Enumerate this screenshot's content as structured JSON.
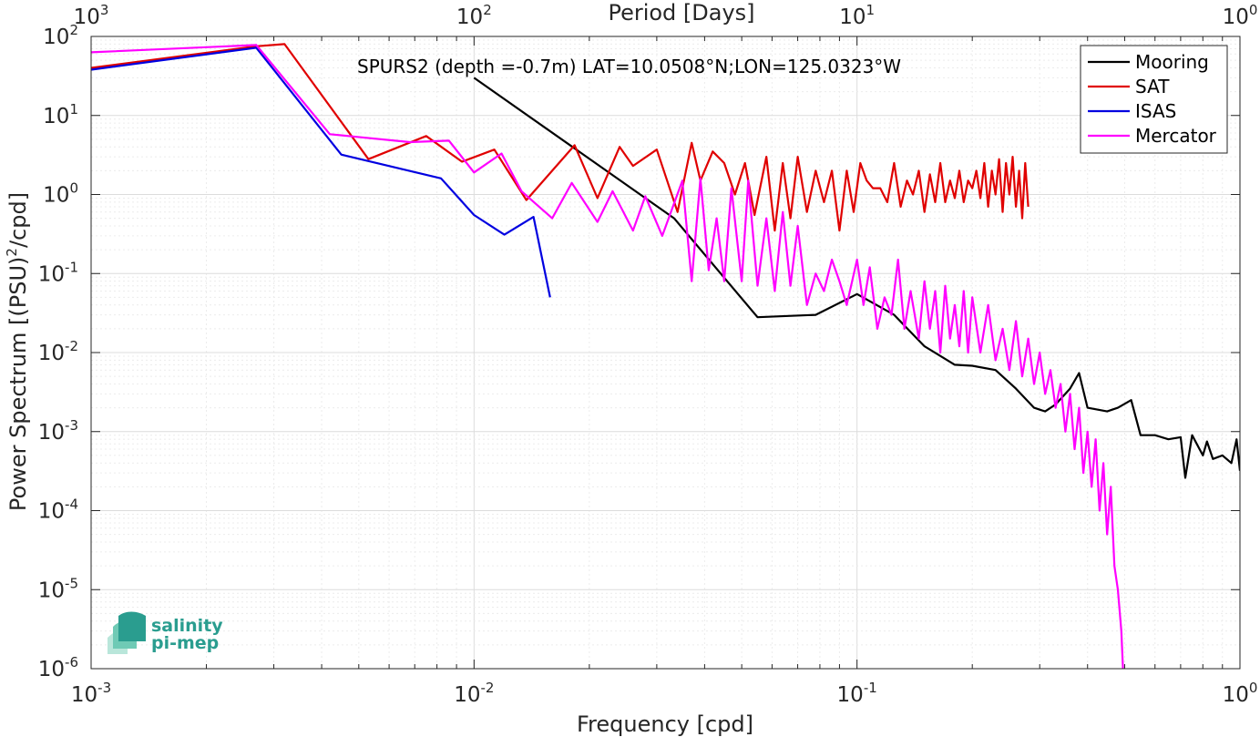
{
  "chart_data": {
    "type": "line",
    "title": "SPURS2 (depth =-0.7m) LAT=10.0508°N;LON=125.0323°W",
    "xlabel": "Frequency [cpd]",
    "ylabel": "Power Spectrum [(PSU)^2/cpd]",
    "x2label": "Period [Days]",
    "xscale": "log",
    "yscale": "log",
    "xlim": [
      0.001,
      1
    ],
    "ylim": [
      1e-06,
      100
    ],
    "grid": true,
    "legend_position": "top-right",
    "x_tick_labels": [
      {
        "base": "10",
        "exp": "-3"
      },
      {
        "base": "10",
        "exp": "-2"
      },
      {
        "base": "10",
        "exp": "-1"
      },
      {
        "base": "10",
        "exp": "0"
      }
    ],
    "x2_tick_labels": [
      {
        "base": "10",
        "exp": "3"
      },
      {
        "base": "10",
        "exp": "2"
      },
      {
        "base": "10",
        "exp": "1"
      },
      {
        "base": "10",
        "exp": "0"
      }
    ],
    "y_tick_labels": [
      {
        "base": "10",
        "exp": "-6"
      },
      {
        "base": "10",
        "exp": "-5"
      },
      {
        "base": "10",
        "exp": "-4"
      },
      {
        "base": "10",
        "exp": "-3"
      },
      {
        "base": "10",
        "exp": "-2"
      },
      {
        "base": "10",
        "exp": "-1"
      },
      {
        "base": "10",
        "exp": "0"
      },
      {
        "base": "10",
        "exp": "1"
      },
      {
        "base": "10",
        "exp": "2"
      }
    ],
    "series": [
      {
        "name": "Mooring",
        "color": "#000000",
        "x": [
          0.01,
          0.0333,
          0.055,
          0.078,
          0.1,
          0.125,
          0.15,
          0.18,
          0.2,
          0.23,
          0.26,
          0.29,
          0.31,
          0.33,
          0.36,
          0.38,
          0.4,
          0.45,
          0.48,
          0.52,
          0.55,
          0.6,
          0.65,
          0.7,
          0.72,
          0.75,
          0.8,
          0.82,
          0.85,
          0.9,
          0.95,
          0.98,
          1.0
        ],
        "y": [
          30,
          0.5,
          0.028,
          0.03,
          0.055,
          0.03,
          0.012,
          0.007,
          0.0068,
          0.006,
          0.0035,
          0.002,
          0.0018,
          0.0022,
          0.0035,
          0.0055,
          0.002,
          0.0018,
          0.002,
          0.0025,
          0.0009,
          0.0009,
          0.0008,
          0.00085,
          0.00026,
          0.0009,
          0.0005,
          0.00075,
          0.00045,
          0.0005,
          0.0004,
          0.0008,
          0.00032
        ]
      },
      {
        "name": "SAT",
        "color": "#e00000",
        "x": [
          0.001,
          0.0027,
          0.0032,
          0.0053,
          0.0075,
          0.0093,
          0.0113,
          0.0137,
          0.0183,
          0.021,
          0.024,
          0.026,
          0.03,
          0.034,
          0.037,
          0.039,
          0.042,
          0.045,
          0.048,
          0.051,
          0.054,
          0.058,
          0.061,
          0.064,
          0.067,
          0.07,
          0.074,
          0.078,
          0.082,
          0.086,
          0.09,
          0.094,
          0.098,
          0.102,
          0.106,
          0.11,
          0.115,
          0.12,
          0.125,
          0.13,
          0.135,
          0.14,
          0.145,
          0.15,
          0.155,
          0.16,
          0.165,
          0.17,
          0.175,
          0.18,
          0.185,
          0.19,
          0.195,
          0.2,
          0.205,
          0.21,
          0.215,
          0.22,
          0.225,
          0.23,
          0.235,
          0.24,
          0.245,
          0.25,
          0.255,
          0.26,
          0.265,
          0.27,
          0.275,
          0.28
        ],
        "y": [
          40,
          75,
          80,
          2.8,
          5.5,
          2.6,
          3.7,
          0.85,
          4.2,
          0.9,
          4.0,
          2.3,
          3.7,
          0.6,
          4.5,
          1.5,
          3.5,
          2.5,
          1.0,
          2.5,
          0.55,
          3.0,
          0.35,
          2.5,
          0.5,
          3.0,
          0.6,
          2.0,
          0.8,
          2.0,
          0.35,
          2.0,
          0.6,
          2.5,
          1.5,
          1.2,
          1.2,
          0.8,
          2.5,
          0.7,
          1.5,
          1.0,
          2.0,
          0.6,
          1.8,
          0.8,
          2.5,
          0.8,
          1.5,
          0.9,
          2.0,
          0.8,
          1.5,
          1.2,
          2.0,
          0.9,
          2.5,
          0.7,
          2.0,
          1.0,
          2.8,
          0.6,
          2.5,
          1.0,
          3.0,
          0.7,
          2.0,
          0.5,
          2.5,
          0.7
        ]
      },
      {
        "name": "ISAS",
        "color": "#0000e0",
        "x": [
          0.001,
          0.0027,
          0.0045,
          0.0082,
          0.01,
          0.012,
          0.0143,
          0.0158
        ],
        "y": [
          38,
          72,
          3.2,
          1.6,
          0.55,
          0.31,
          0.52,
          0.05
        ]
      },
      {
        "name": "Mercator",
        "color": "#ff00ff",
        "x": [
          0.001,
          0.0027,
          0.0042,
          0.0068,
          0.0086,
          0.01,
          0.0118,
          0.0133,
          0.016,
          0.018,
          0.021,
          0.023,
          0.026,
          0.028,
          0.031,
          0.035,
          0.037,
          0.039,
          0.041,
          0.043,
          0.045,
          0.047,
          0.05,
          0.052,
          0.055,
          0.058,
          0.061,
          0.064,
          0.067,
          0.07,
          0.074,
          0.078,
          0.082,
          0.086,
          0.09,
          0.094,
          0.1,
          0.104,
          0.108,
          0.113,
          0.118,
          0.123,
          0.128,
          0.133,
          0.138,
          0.145,
          0.15,
          0.155,
          0.16,
          0.165,
          0.17,
          0.175,
          0.18,
          0.185,
          0.19,
          0.195,
          0.2,
          0.21,
          0.22,
          0.23,
          0.24,
          0.25,
          0.26,
          0.27,
          0.28,
          0.29,
          0.3,
          0.31,
          0.32,
          0.33,
          0.34,
          0.35,
          0.36,
          0.37,
          0.38,
          0.39,
          0.4,
          0.41,
          0.42,
          0.43,
          0.44,
          0.45,
          0.46,
          0.47,
          0.48,
          0.49,
          0.495
        ],
        "y": [
          63,
          78,
          5.8,
          4.6,
          4.8,
          1.9,
          3.3,
          1.1,
          0.5,
          1.4,
          0.45,
          1.1,
          0.35,
          0.95,
          0.3,
          1.5,
          0.08,
          1.6,
          0.11,
          0.5,
          0.08,
          1.2,
          0.08,
          1.5,
          0.07,
          0.5,
          0.06,
          0.6,
          0.07,
          0.4,
          0.04,
          0.1,
          0.06,
          0.15,
          0.08,
          0.04,
          0.15,
          0.04,
          0.12,
          0.02,
          0.05,
          0.03,
          0.15,
          0.02,
          0.06,
          0.015,
          0.08,
          0.02,
          0.06,
          0.01,
          0.07,
          0.015,
          0.04,
          0.012,
          0.06,
          0.01,
          0.05,
          0.01,
          0.04,
          0.008,
          0.02,
          0.006,
          0.025,
          0.005,
          0.015,
          0.004,
          0.01,
          0.003,
          0.006,
          0.002,
          0.004,
          0.001,
          0.003,
          0.0006,
          0.002,
          0.0003,
          0.001,
          0.0002,
          0.0008,
          0.0001,
          0.0004,
          5e-05,
          0.0002,
          2e-05,
          1e-05,
          3e-06,
          1e-06
        ]
      }
    ],
    "legend": [
      "Mooring",
      "SAT",
      "ISAS",
      "Mercator"
    ],
    "logo": {
      "line1": "salinity",
      "line2": "pi-mep"
    }
  }
}
